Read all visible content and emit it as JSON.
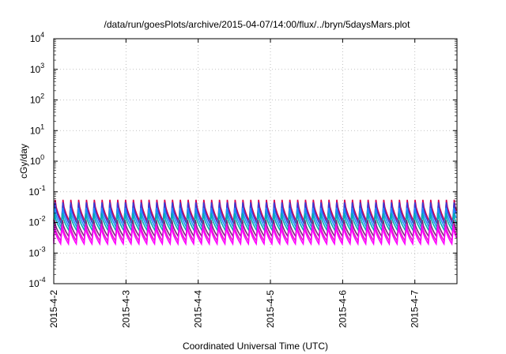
{
  "chart_data": {
    "type": "line",
    "title": "/data/run/goesPlots/archive/2015-04-07/14:00/flux/../bryn/5daysMars.plot",
    "xlabel": "Coordinated Universal Time (UTC)",
    "ylabel": "cGy/day",
    "y_scale": "log",
    "ylim": [
      0.0001,
      10000
    ],
    "y_ticks": [
      {
        "value": 0.0001,
        "base": "10",
        "exp": "-4"
      },
      {
        "value": 0.001,
        "base": "10",
        "exp": "-3"
      },
      {
        "value": 0.01,
        "base": "10",
        "exp": "-2"
      },
      {
        "value": 0.1,
        "base": "10",
        "exp": "-1"
      },
      {
        "value": 1,
        "base": "10",
        "exp": "0"
      },
      {
        "value": 10,
        "base": "10",
        "exp": "1"
      },
      {
        "value": 100,
        "base": "10",
        "exp": "2"
      },
      {
        "value": 1000,
        "base": "10",
        "exp": "3"
      },
      {
        "value": 10000,
        "base": "10",
        "exp": "4"
      }
    ],
    "xlim": [
      "2015-04-02T00:00",
      "2015-04-07T14:00"
    ],
    "x_ticks": [
      "2015-4-2",
      "2015-4-3",
      "2015-4-4",
      "2015-4-5",
      "2015-4-6",
      "2015-4-7"
    ],
    "x_tick_dates": [
      "2015-04-02",
      "2015-04-03",
      "2015-04-04",
      "2015-04-05",
      "2015-04-06",
      "2015-04-07"
    ],
    "grid": true,
    "oscillation_period_hours": 2.6,
    "series": [
      {
        "color": "#d40050",
        "peak": 0.055,
        "trough": 0.011
      },
      {
        "color": "#3b3bd6",
        "peak": 0.045,
        "trough": 0.009
      },
      {
        "color": "#1e90ff",
        "peak": 0.03,
        "trough": 0.007
      },
      {
        "color": "#00b0b0",
        "peak": 0.02,
        "trough": 0.0055
      },
      {
        "color": "#7a2a7a",
        "peak": 0.012,
        "trough": 0.0035
      },
      {
        "color": "#e020c8",
        "peak": 0.009,
        "trough": 0.0025
      },
      {
        "color": "#ff00ff",
        "peak": 0.0075,
        "trough": 0.002
      }
    ]
  }
}
